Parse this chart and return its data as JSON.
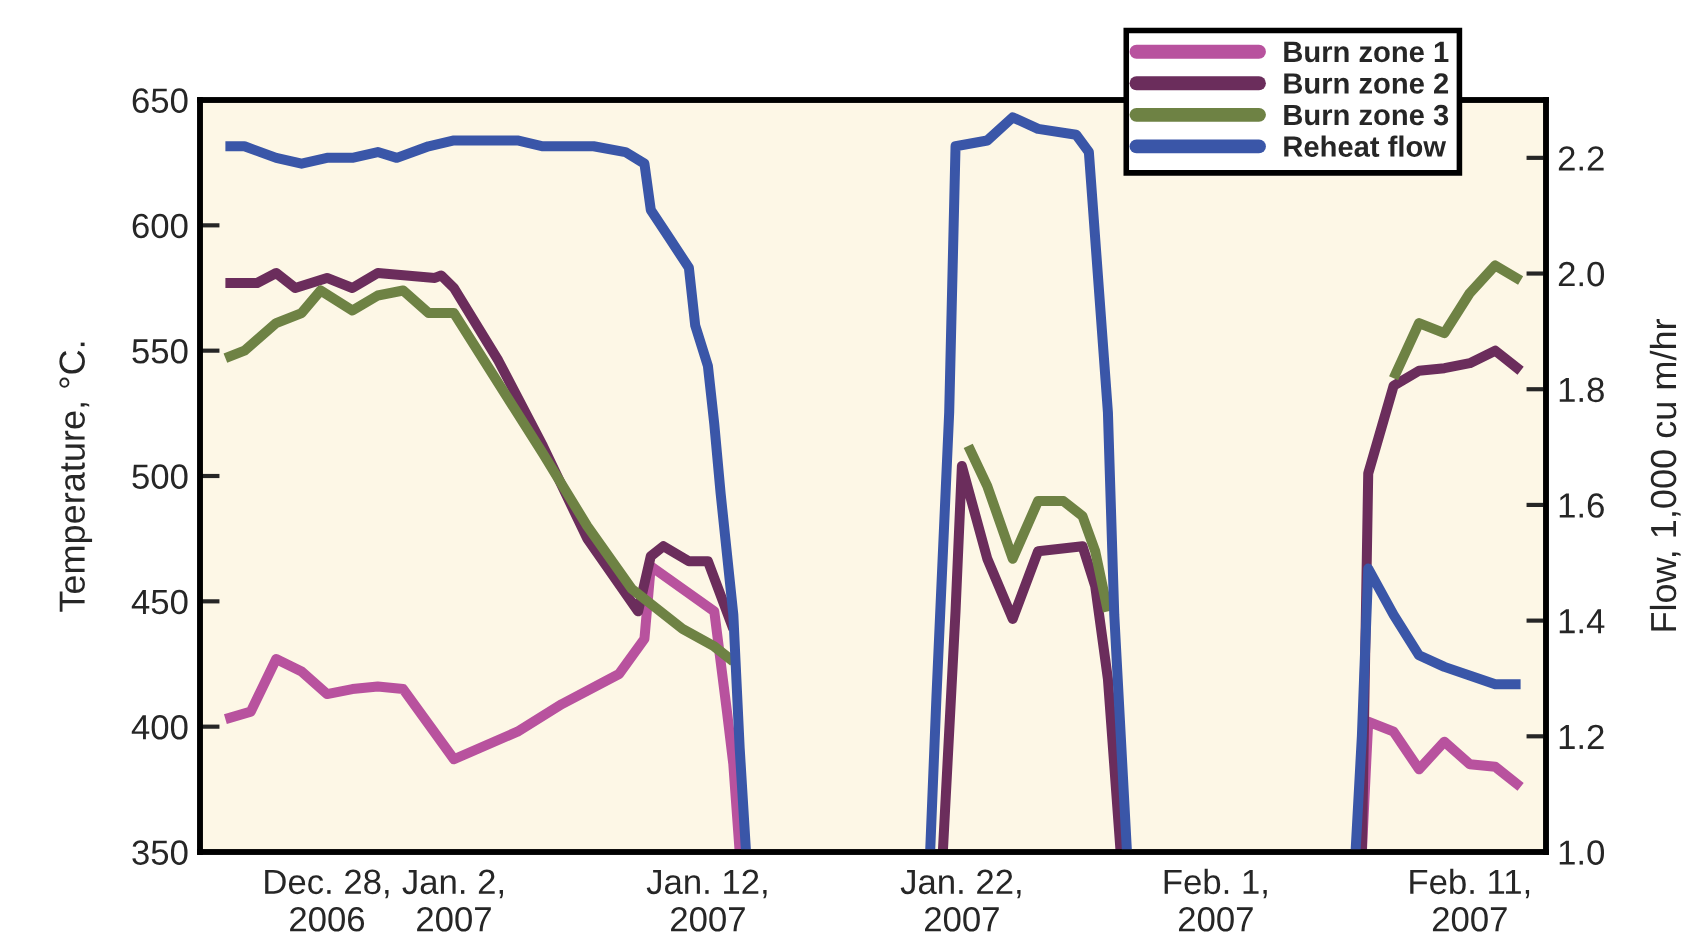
{
  "chart_data": {
    "type": "line",
    "ylabel": "Temperature, °C.",
    "y2label": "Flow, 1,000 cu m/hr",
    "xlim": [
      "2006-12-23",
      "2007-02-14"
    ],
    "xticks": [
      {
        "value": "2006-12-28",
        "label": "Dec. 28,\n2006"
      },
      {
        "value": "2007-01-02",
        "label": "Jan. 2,\n2007"
      },
      {
        "value": "2007-01-12",
        "label": "Jan. 12,\n2007"
      },
      {
        "value": "2007-01-22",
        "label": "Jan. 22,\n2007"
      },
      {
        "value": "2007-02-01",
        "label": "Feb. 1,\n2007"
      },
      {
        "value": "2007-02-11",
        "label": "Feb. 11,\n2007"
      }
    ],
    "ylim": [
      350,
      650
    ],
    "yticks": [
      350,
      400,
      450,
      500,
      550,
      600,
      650
    ],
    "y2lim": [
      1.0,
      2.3
    ],
    "y2ticks": [
      {
        "value": 1.0,
        "label": "1.0"
      },
      1.2,
      1.4,
      1.6,
      1.8,
      {
        "value": 2.0,
        "label": "2.0"
      },
      2.2
    ],
    "grid": false,
    "legend": "top right",
    "marker": "none",
    "line_style": "solid",
    "series": [
      {
        "name": "Burn zone 1",
        "color": "#b8529e",
        "x": [
          "2006-12-24",
          "2006-12-25",
          "2006-12-26",
          "2006-12-27",
          "2006-12-28",
          "2006-12-29",
          "2006-12-30",
          "2006-12-31",
          "2007-01-02",
          "2007-01-04T12:00",
          "2007-01-06T06:00",
          "2007-01-08T12:00",
          "2007-01-09T12:00",
          "2007-01-09T18:00",
          "2007-01-12T06:00",
          "2007-01-12T18:00",
          "2007-01-13",
          "2007-01-13T06:00",
          "2007-01-30",
          "2007-02-06T18:00",
          "2007-02-07",
          "2007-02-08",
          "2007-02-09",
          "2007-02-10",
          "2007-02-11",
          "2007-02-12",
          "2007-02-13"
        ],
        "values": [
          403,
          406,
          427,
          422,
          413,
          415,
          416,
          415,
          387,
          398,
          409,
          421,
          435,
          464,
          446,
          406,
          385,
          350,
          null,
          350,
          402,
          398,
          383,
          394,
          385,
          384,
          376
        ]
      },
      {
        "name": "Burn zone 2",
        "color": "#6b2d5c",
        "x": [
          "2006-12-24",
          "2006-12-25T06:00",
          "2006-12-26",
          "2006-12-26T18:00",
          "2006-12-28",
          "2006-12-29",
          "2006-12-30",
          "2007-01-01T06:00",
          "2007-01-01T12:00",
          "2007-01-02",
          "2007-01-03T18:00",
          "2007-01-05T12:00",
          "2007-01-07T06:00",
          "2007-01-09T06:00",
          "2007-01-09T18:00",
          "2007-01-10T06:00",
          "2007-01-11T06:00",
          "2007-01-12",
          "2007-01-13",
          "2007-01-17",
          "2007-01-21T06:00",
          "2007-01-21T18:00",
          "2007-01-22",
          "2007-01-23",
          "2007-01-24",
          "2007-01-25",
          "2007-01-26T18:00",
          "2007-01-27T06:00",
          "2007-01-27T18:00",
          "2007-01-28T06:00",
          "2007-02-02",
          "2007-02-06T18:00",
          "2007-02-07",
          "2007-02-08",
          "2007-02-09",
          "2007-02-10",
          "2007-02-11",
          "2007-02-12",
          "2007-02-13"
        ],
        "values": [
          577,
          577,
          581,
          575,
          579,
          575,
          581,
          579,
          580,
          575,
          546,
          512,
          475,
          446,
          468,
          472,
          466,
          466,
          439,
          null,
          350,
          446,
          504,
          467,
          443,
          470,
          472,
          456,
          419,
          350,
          null,
          350,
          501,
          536,
          542,
          543,
          545,
          550,
          542
        ]
      },
      {
        "name": "Burn zone 3",
        "color": "#6e8244",
        "x": [
          "2006-12-24",
          "2006-12-24T18:00",
          "2006-12-26",
          "2006-12-27",
          "2006-12-27T18:00",
          "2006-12-29",
          "2006-12-30",
          "2006-12-31",
          "2007-01-01",
          "2007-01-02",
          "2007-01-03T12:00",
          "2007-01-05T12:00",
          "2007-01-07T06:00",
          "2007-01-09",
          "2007-01-11",
          "2007-01-12T06:00",
          "2007-01-13",
          "2007-01-17",
          "2007-01-22T06:00",
          "2007-01-23",
          "2007-01-24",
          "2007-01-25",
          "2007-01-26",
          "2007-01-26T18:00",
          "2007-01-27T06:00",
          "2007-01-27T18:00",
          "2007-02-02",
          "2007-02-08",
          "2007-02-09",
          "2007-02-10",
          "2007-02-11",
          "2007-02-12",
          "2007-02-13"
        ],
        "values": [
          547,
          550,
          561,
          565,
          574,
          566,
          572,
          574,
          565,
          565,
          541,
          509,
          480,
          455,
          439,
          432,
          426,
          null,
          512,
          496,
          467,
          490,
          490,
          484,
          470,
          446,
          null,
          539,
          561,
          557,
          573,
          584,
          578
        ]
      },
      {
        "name": "Reheat flow",
        "color": "#3a56a8",
        "axis": "y2",
        "x": [
          "2006-12-24",
          "2006-12-24T18:00",
          "2006-12-26",
          "2006-12-27",
          "2006-12-28",
          "2006-12-29",
          "2006-12-30",
          "2006-12-30T18:00",
          "2007-01-01",
          "2007-01-02",
          "2007-01-04T12:00",
          "2007-01-05T12:00",
          "2007-01-07T12:00",
          "2007-01-08T18:00",
          "2007-01-09T12:00",
          "2007-01-09T18:00",
          "2007-01-10T12:00",
          "2007-01-11T06:00",
          "2007-01-11T12:00",
          "2007-01-12",
          "2007-01-12T06:00",
          "2007-01-12T12:00",
          "2007-01-13",
          "2007-01-13T06:00",
          "2007-01-13T12:00",
          "2007-01-17",
          "2007-01-20T18:00",
          "2007-01-21",
          "2007-01-21T12:00",
          "2007-01-21T18:00",
          "2007-01-23",
          "2007-01-24",
          "2007-01-25",
          "2007-01-26T12:00",
          "2007-01-27",
          "2007-01-27T18:00",
          "2007-01-28",
          "2007-01-28T12:00",
          "2007-02-02",
          "2007-02-06T12:00",
          "2007-02-06T18:00",
          "2007-02-07",
          "2007-02-08",
          "2007-02-09",
          "2007-02-10",
          "2007-02-12",
          "2007-02-13"
        ],
        "values": [
          2.22,
          2.22,
          2.2,
          2.19,
          2.2,
          2.2,
          2.21,
          2.2,
          2.22,
          2.23,
          2.23,
          2.22,
          2.22,
          2.21,
          2.19,
          2.11,
          2.06,
          2.01,
          1.91,
          1.84,
          1.74,
          1.62,
          1.41,
          1.18,
          1.0,
          null,
          1.0,
          1.27,
          1.76,
          2.22,
          2.23,
          2.27,
          2.25,
          2.24,
          2.21,
          1.76,
          1.41,
          1.0,
          null,
          1.0,
          1.2,
          1.49,
          1.41,
          1.34,
          1.32,
          1.29,
          1.29
        ]
      }
    ]
  }
}
